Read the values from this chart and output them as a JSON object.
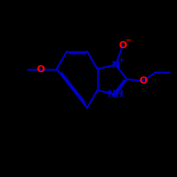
{
  "bg_color": "#000000",
  "bond_color": "#0000cd",
  "bond_width": 1.8,
  "label_fontsize": 10,
  "sup_fontsize": 7,
  "atom_colors": {
    "N_plus": "#0000cd",
    "N_H": "#0000cd",
    "O_minus": "#ff0000",
    "O": "#ff0000"
  },
  "figsize": [
    2.5,
    2.5
  ],
  "dpi": 100
}
